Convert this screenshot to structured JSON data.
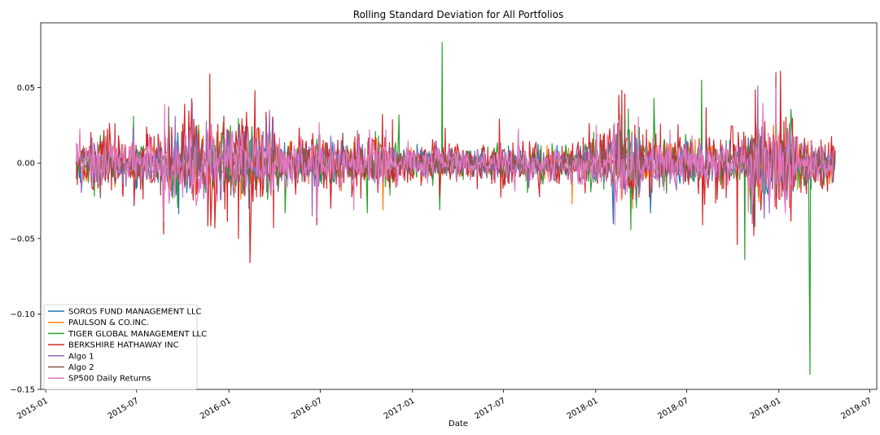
{
  "chart_data": {
    "type": "line",
    "title": "Rolling Standard Deviation for All Portfolios",
    "xlabel": "Date",
    "ylabel": "",
    "x_range": [
      "2015-03-03",
      "2019-04-23"
    ],
    "xlim": [
      "2014-12-22",
      "2019-07-15"
    ],
    "ylim": [
      -0.15,
      0.093
    ],
    "x_ticks": [
      "2015-01",
      "2015-07",
      "2016-01",
      "2016-07",
      "2017-01",
      "2017-07",
      "2018-01",
      "2018-07",
      "2019-01",
      "2019-07"
    ],
    "y_ticks": [
      "−0.15",
      "−0.10",
      "−0.05",
      "0.00",
      "0.05"
    ],
    "y_tick_values": [
      -0.15,
      -0.1,
      -0.05,
      0.0,
      0.05
    ],
    "grid": false,
    "legend_position": "lower-left",
    "series": [
      {
        "name": "SOROS FUND MANAGEMENT LLC",
        "color": "#1f77b4",
        "noise": 0.006,
        "spikes": [
          {
            "date": "2018-02-05",
            "value": -0.04
          },
          {
            "date": "2018-04-20",
            "value": -0.033
          },
          {
            "date": "2016-02-10",
            "value": -0.03
          }
        ]
      },
      {
        "name": "PAULSON & CO.INC.",
        "color": "#ff7f0e",
        "noise": 0.006,
        "spikes": [
          {
            "date": "2016-11-03",
            "value": -0.031
          },
          {
            "date": "2017-01-20",
            "value": -0.012
          },
          {
            "date": "2017-11-15",
            "value": -0.027
          }
        ]
      },
      {
        "name": "TIGER GLOBAL MANAGEMENT LLC",
        "color": "#2ca02c",
        "noise": 0.007,
        "spikes": [
          {
            "date": "2017-03-01",
            "value": 0.08
          },
          {
            "date": "2017-02-25",
            "value": -0.031
          },
          {
            "date": "2018-07-31",
            "value": 0.055
          },
          {
            "date": "2018-04-27",
            "value": 0.043
          },
          {
            "date": "2018-10-25",
            "value": -0.064
          },
          {
            "date": "2019-03-04",
            "value": -0.14
          },
          {
            "date": "2019-03-01",
            "value": 0.0
          },
          {
            "date": "2016-12-05",
            "value": 0.032
          },
          {
            "date": "2016-04-22",
            "value": -0.033
          },
          {
            "date": "2016-10-03",
            "value": -0.033
          }
        ]
      },
      {
        "name": "BERKSHIRE HATHAWAY INC",
        "color": "#d62728",
        "noise": 0.011,
        "spikes": [
          {
            "date": "2016-02-12",
            "value": -0.066
          },
          {
            "date": "2016-02-22",
            "value": 0.048
          },
          {
            "date": "2016-01-20",
            "value": -0.05
          },
          {
            "date": "2015-08-24",
            "value": -0.047
          },
          {
            "date": "2018-10-10",
            "value": -0.054
          },
          {
            "date": "2019-01-05",
            "value": 0.061
          },
          {
            "date": "2018-12-26",
            "value": 0.06
          },
          {
            "date": "2016-06-24",
            "value": -0.041
          },
          {
            "date": "2018-08-02",
            "value": -0.041
          },
          {
            "date": "2018-11-12",
            "value": -0.048
          }
        ]
      },
      {
        "name": "Algo 1",
        "color": "#9467bd",
        "noise": 0.007,
        "spikes": [
          {
            "date": "2018-11-20",
            "value": 0.051
          },
          {
            "date": "2016-03-22",
            "value": 0.035
          },
          {
            "date": "2015-10-20",
            "value": 0.04
          },
          {
            "date": "2016-06-15",
            "value": -0.035
          }
        ]
      },
      {
        "name": "Algo 2",
        "color": "#8c564b",
        "noise": 0.006,
        "spikes": [
          {
            "date": "2015-04-20",
            "value": -0.023
          },
          {
            "date": "2016-08-15",
            "value": 0.02
          }
        ]
      },
      {
        "name": "SP500 Daily Returns",
        "color": "#e377c2",
        "noise": 0.008,
        "spikes": [
          {
            "date": "2015-08-24",
            "value": -0.039
          },
          {
            "date": "2015-08-26",
            "value": 0.039
          },
          {
            "date": "2018-02-08",
            "value": -0.041
          },
          {
            "date": "2018-12-24",
            "value": -0.029
          },
          {
            "date": "2018-12-26",
            "value": 0.05
          },
          {
            "date": "2016-06-24",
            "value": -0.036
          },
          {
            "date": "2016-11-09",
            "value": 0.022
          }
        ]
      }
    ]
  }
}
